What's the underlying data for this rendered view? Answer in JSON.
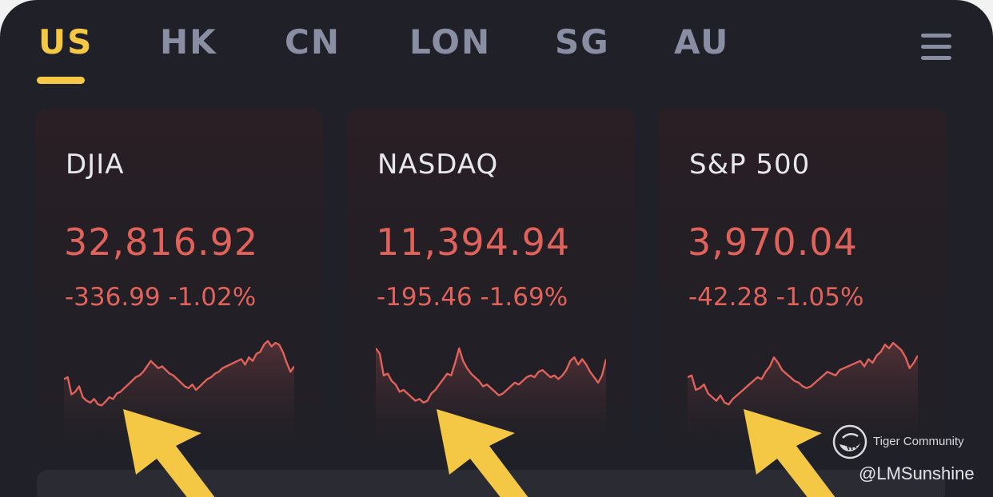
{
  "tabs": [
    {
      "label": "US",
      "active": true
    },
    {
      "label": "HK",
      "active": false
    },
    {
      "label": "CN",
      "active": false
    },
    {
      "label": "LON",
      "active": false
    },
    {
      "label": "SG",
      "active": false
    },
    {
      "label": "AU",
      "active": false
    }
  ],
  "menu": {
    "icon": "hamburger-menu-icon"
  },
  "colors": {
    "active_tab": "#f4c845",
    "inactive_tab": "#8a8ea3",
    "negative": "#e0625a",
    "background": "#202128",
    "arrow": "#f4c845"
  },
  "indices": [
    {
      "name": "DJIA",
      "value": "32,816.92",
      "change": "-336.99 -1.02%",
      "sparkline": [
        42,
        44,
        25,
        28,
        34,
        22,
        18,
        16,
        20,
        14,
        13,
        17,
        22,
        20,
        26,
        28,
        32,
        36,
        40,
        44,
        46,
        50,
        56,
        62,
        58,
        54,
        56,
        52,
        48,
        46,
        42,
        38,
        34,
        32,
        36,
        30,
        34,
        38,
        42,
        44,
        48,
        50,
        54,
        56,
        58,
        60,
        62,
        64,
        58,
        66,
        62,
        70,
        72,
        80,
        84,
        78,
        82,
        80,
        72,
        60,
        50,
        56
      ]
    },
    {
      "name": "NASDAQ",
      "value": "11,394.94",
      "change": "-195.46 -1.69%",
      "sparkline": [
        76,
        70,
        46,
        48,
        40,
        36,
        28,
        30,
        26,
        22,
        18,
        20,
        16,
        18,
        26,
        30,
        36,
        42,
        48,
        46,
        60,
        76,
        62,
        54,
        48,
        44,
        40,
        34,
        36,
        32,
        28,
        24,
        26,
        30,
        34,
        38,
        36,
        40,
        44,
        46,
        44,
        50,
        52,
        48,
        44,
        46,
        42,
        46,
        52,
        62,
        66,
        58,
        64,
        58,
        50,
        44,
        38,
        46,
        64
      ]
    },
    {
      "name": "S&P 500",
      "value": "3,970.04",
      "change": "-42.28 -1.05%",
      "sparkline": [
        44,
        46,
        30,
        32,
        36,
        26,
        22,
        18,
        24,
        16,
        14,
        20,
        24,
        28,
        32,
        36,
        40,
        44,
        42,
        50,
        56,
        66,
        60,
        52,
        48,
        44,
        40,
        38,
        34,
        32,
        34,
        38,
        42,
        46,
        50,
        48,
        46,
        52,
        54,
        56,
        58,
        60,
        62,
        56,
        64,
        60,
        68,
        72,
        80,
        76,
        82,
        78,
        74,
        66,
        54,
        60,
        68
      ]
    }
  ],
  "watermark": {
    "brand": "Tiger Community",
    "user": "@LMSunshine",
    "icon": "tiger-logo-icon"
  }
}
